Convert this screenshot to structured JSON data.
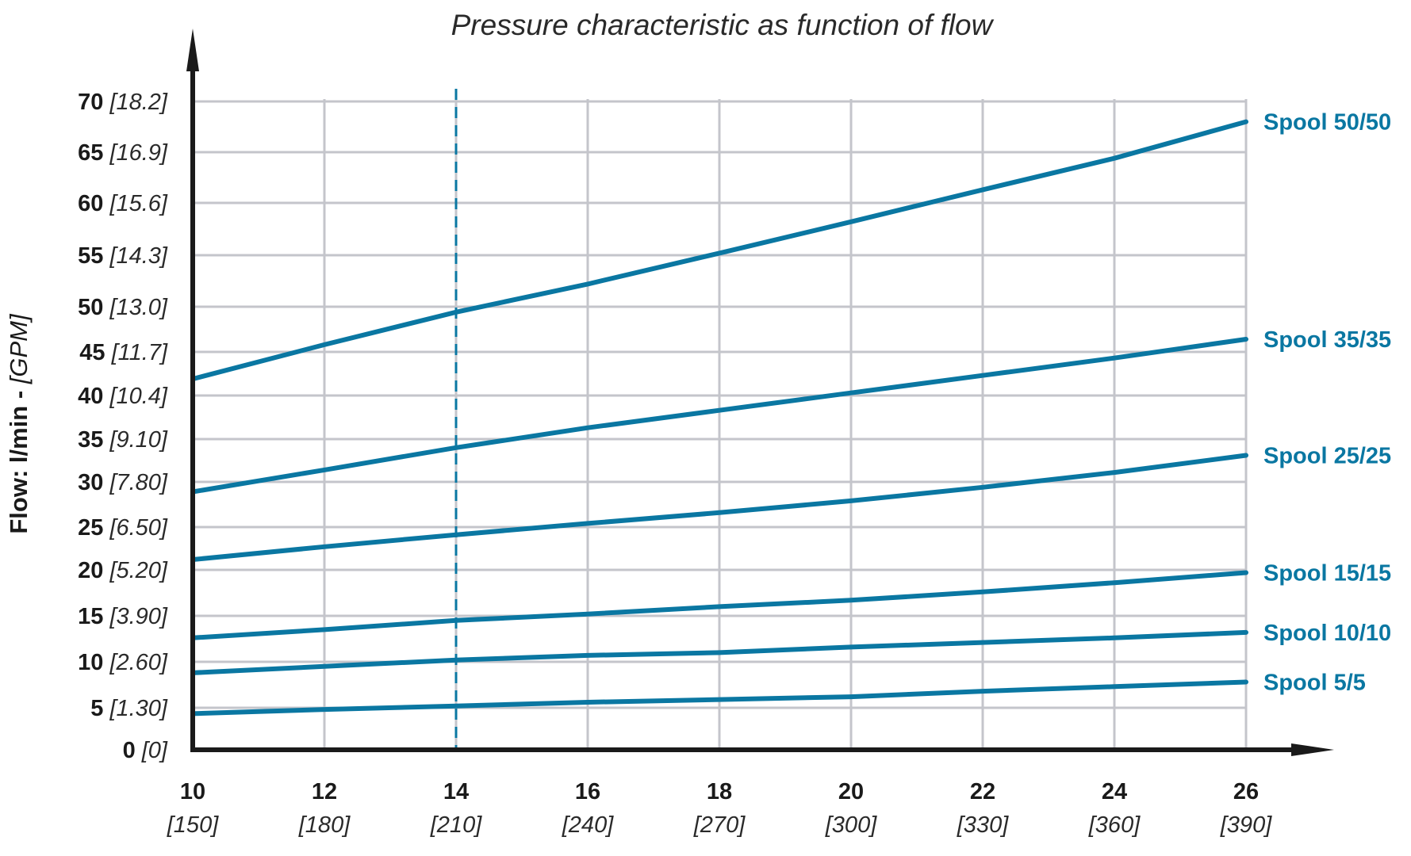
{
  "chart_data": {
    "type": "line",
    "subtitle": "Pressure characteristic as function of flow",
    "ylabel_main": "Flow: l/min - ",
    "ylabel_alt": "[GPM]",
    "x": [
      10,
      12,
      14,
      16,
      18,
      20,
      22,
      24,
      26
    ],
    "xlim": [
      10,
      26
    ],
    "ylim": [
      0,
      70
    ],
    "x_ticks": [
      {
        "value": 10,
        "label": "10",
        "alt": "[150]"
      },
      {
        "value": 12,
        "label": "12",
        "alt": "[180]"
      },
      {
        "value": 14,
        "label": "14",
        "alt": "[210]"
      },
      {
        "value": 16,
        "label": "16",
        "alt": "[240]"
      },
      {
        "value": 18,
        "label": "18",
        "alt": "[270]"
      },
      {
        "value": 20,
        "label": "20",
        "alt": "[300]"
      },
      {
        "value": 22,
        "label": "22",
        "alt": "[330]"
      },
      {
        "value": 24,
        "label": "24",
        "alt": "[360]"
      },
      {
        "value": 26,
        "label": "26",
        "alt": "[390]"
      }
    ],
    "y_ticks": [
      {
        "value": 0,
        "label": "0",
        "alt": "[0]"
      },
      {
        "value": 5,
        "label": "5",
        "alt": "[1.30]"
      },
      {
        "value": 10,
        "label": "10",
        "alt": "[2.60]"
      },
      {
        "value": 15,
        "label": "15",
        "alt": "[3.90]"
      },
      {
        "value": 20,
        "label": "20",
        "alt": "[5.20]"
      },
      {
        "value": 25,
        "label": "25",
        "alt": "[6.50]"
      },
      {
        "value": 30,
        "label": "30",
        "alt": "[7.80]"
      },
      {
        "value": 35,
        "label": "35",
        "alt": "[9.10]"
      },
      {
        "value": 40,
        "label": "40",
        "alt": "[10.4]"
      },
      {
        "value": 45,
        "label": "45",
        "alt": "[11.7]"
      },
      {
        "value": 50,
        "label": "50",
        "alt": "[13.0]"
      },
      {
        "value": 55,
        "label": "55",
        "alt": "[14.3]"
      },
      {
        "value": 60,
        "label": "60",
        "alt": "[15.6]"
      },
      {
        "value": 65,
        "label": "65",
        "alt": "[16.9]"
      },
      {
        "value": 70,
        "label": "70",
        "alt": "[18.2]"
      }
    ],
    "reference_line_x": 14,
    "grid": true,
    "series": [
      {
        "name": "Spool 50/50",
        "values": [
          41.9,
          45.8,
          49.4,
          52.2,
          55.2,
          58.2,
          61.3,
          64.4,
          68.0
        ]
      },
      {
        "name": "Spool 35/35",
        "values": [
          28.9,
          31.4,
          34.0,
          36.3,
          38.3,
          40.3,
          42.3,
          44.3,
          46.4
        ]
      },
      {
        "name": "Spool 25/25",
        "values": [
          21.2,
          22.7,
          24.1,
          25.4,
          26.6,
          27.9,
          29.4,
          31.1,
          33.1
        ]
      },
      {
        "name": "Spool 15/15",
        "values": [
          12.6,
          13.5,
          14.5,
          15.2,
          16.0,
          16.7,
          17.6,
          18.6,
          19.7
        ]
      },
      {
        "name": "Spool 10/10",
        "values": [
          8.8,
          9.5,
          10.2,
          10.7,
          11.0,
          11.6,
          12.1,
          12.6,
          13.2
        ]
      },
      {
        "name": "Spool 5/5",
        "values": [
          4.3,
          4.8,
          5.2,
          5.6,
          5.9,
          6.2,
          6.8,
          7.3,
          7.8
        ]
      }
    ],
    "colors": {
      "series": "#0a77a2",
      "axis": "#1a1a1a",
      "grid": "#c4c5cb"
    }
  }
}
